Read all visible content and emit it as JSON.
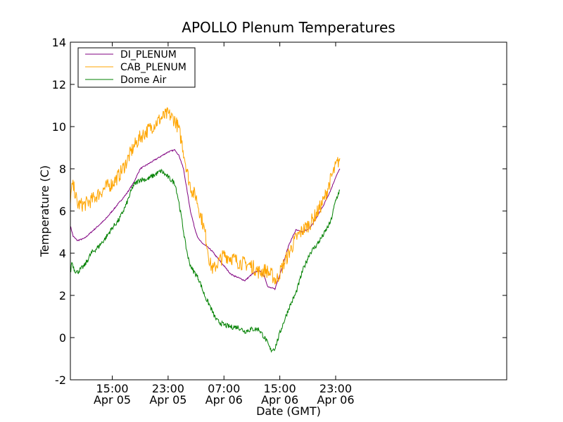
{
  "chart_data": {
    "type": "line",
    "title": "APOLLO Plenum Temperatures",
    "xlabel": "Date (GMT)",
    "ylabel": "Temperature (C)",
    "xlim": [
      9,
      71.5
    ],
    "ylim": [
      -2,
      14
    ],
    "yticks": [
      -2,
      0,
      2,
      4,
      6,
      8,
      10,
      12,
      14
    ],
    "xticks": [
      {
        "x": 15,
        "time": "15:00",
        "date": "Apr 05"
      },
      {
        "x": 23,
        "time": "23:00",
        "date": "Apr 05"
      },
      {
        "x": 31,
        "time": "07:00",
        "date": "Apr 06"
      },
      {
        "x": 39,
        "time": "15:00",
        "date": "Apr 06"
      },
      {
        "x": 47,
        "time": "23:00",
        "date": "Apr 06"
      }
    ],
    "x_unit": "hours since 00:00 Apr 05 (approx.)",
    "legend_position": "top-left",
    "series": [
      {
        "name": "DI_PLENUM",
        "color": "#800080",
        "noise": 0.03,
        "x": [
          9,
          9.4,
          10,
          11,
          12,
          13,
          14,
          15,
          16,
          17,
          18,
          19,
          20,
          21,
          22,
          23,
          24,
          24.6,
          25.2,
          25.6,
          26.2,
          26.8,
          27.3,
          27.8,
          28.6,
          29.3,
          30,
          31,
          32,
          33,
          34,
          35,
          36,
          36.8,
          37.3,
          38.3,
          39.3,
          40.3,
          41.3,
          42.3,
          43.3,
          44.3,
          45.3,
          46.3,
          47,
          47.6
        ],
        "y": [
          5.3,
          4.8,
          4.6,
          4.7,
          5.0,
          5.3,
          5.6,
          6.0,
          6.4,
          6.8,
          7.3,
          8.0,
          8.2,
          8.4,
          8.6,
          8.8,
          8.9,
          8.6,
          8.0,
          7.2,
          6.0,
          5.2,
          4.7,
          4.5,
          4.3,
          4.1,
          3.8,
          3.4,
          3.0,
          2.85,
          2.7,
          3.0,
          3.2,
          2.9,
          2.4,
          2.3,
          3.3,
          4.4,
          5.1,
          5.0,
          5.2,
          5.7,
          6.3,
          7.0,
          7.6,
          8.0
        ]
      },
      {
        "name": "CAB_PLENUM",
        "color": "#ffa500",
        "noise": 0.35,
        "x": [
          9,
          9.3,
          9.6,
          10,
          11,
          12,
          13,
          14,
          15,
          16,
          17,
          18,
          19,
          20,
          21,
          22,
          23,
          24,
          24.5,
          25,
          25.5,
          26,
          26.5,
          27,
          27.5,
          28,
          28.5,
          29,
          29.5,
          30,
          30.5,
          31,
          32,
          33,
          34,
          35,
          36,
          37,
          38,
          38.5,
          39.3,
          40.3,
          41.3,
          42.3,
          43.3,
          44.3,
          45.3,
          46.3,
          47,
          47.6
        ],
        "y": [
          6.6,
          7.2,
          7.0,
          6.3,
          6.3,
          6.5,
          6.8,
          7.1,
          7.3,
          7.7,
          8.3,
          9.0,
          9.5,
          9.8,
          10.1,
          10.4,
          10.6,
          10.3,
          9.9,
          9.2,
          8.3,
          7.4,
          6.9,
          6.7,
          6.0,
          5.4,
          4.6,
          3.5,
          3.2,
          3.5,
          3.7,
          3.9,
          3.8,
          3.6,
          3.5,
          3.4,
          3.1,
          3.2,
          2.9,
          2.7,
          3.3,
          4.0,
          4.7,
          5.1,
          5.4,
          5.9,
          6.5,
          7.5,
          8.1,
          8.5
        ]
      },
      {
        "name": "Dome Air",
        "color": "#008000",
        "noise": 0.12,
        "x": [
          9,
          9.2,
          9.6,
          10,
          11,
          12,
          13,
          14,
          15,
          16,
          17,
          18,
          19,
          20,
          21,
          22,
          23,
          24,
          24.5,
          25,
          25.5,
          26,
          26.5,
          27,
          27.5,
          28,
          28.5,
          29,
          29.5,
          30,
          31,
          32,
          33,
          34,
          35,
          36,
          37,
          37.7,
          38.3,
          39.3,
          40.3,
          41.3,
          42.3,
          43.3,
          44.3,
          45.3,
          46.3,
          47,
          47.6
        ],
        "y": [
          3.0,
          3.6,
          3.2,
          3.1,
          3.4,
          4.0,
          4.3,
          4.7,
          5.2,
          5.6,
          6.3,
          7.2,
          7.5,
          7.5,
          7.7,
          7.9,
          7.6,
          7.3,
          6.5,
          5.5,
          4.4,
          3.6,
          3.2,
          3.0,
          2.7,
          2.2,
          1.8,
          1.5,
          1.1,
          0.8,
          0.6,
          0.5,
          0.5,
          0.3,
          0.4,
          0.4,
          -0.1,
          -0.6,
          -0.5,
          0.5,
          1.4,
          2.1,
          3.2,
          4.0,
          4.4,
          4.9,
          5.5,
          6.5,
          7.0
        ]
      }
    ]
  }
}
